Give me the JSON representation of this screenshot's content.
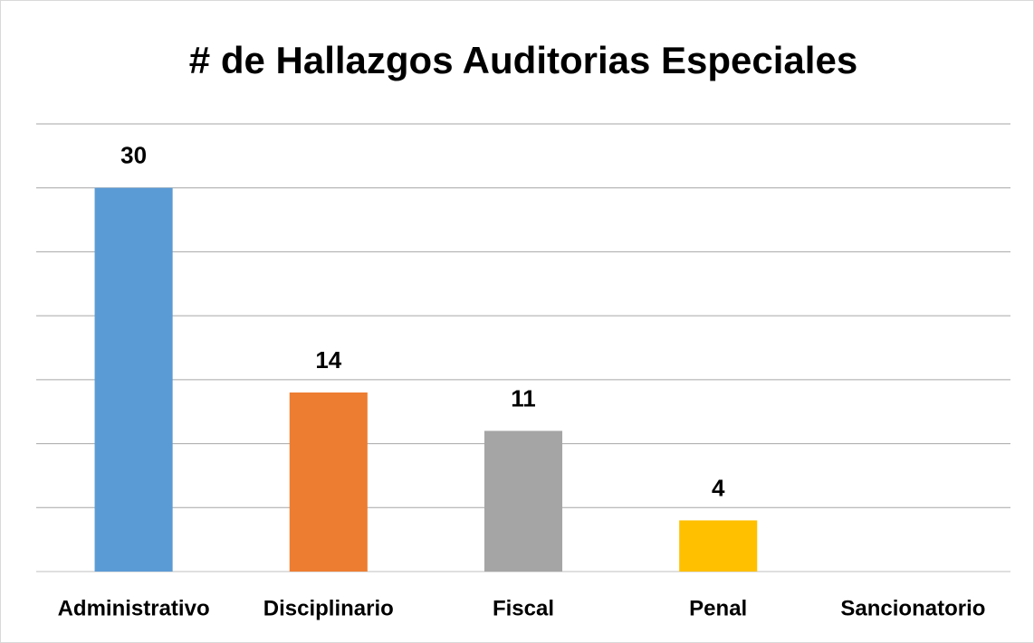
{
  "chart_data": {
    "type": "bar",
    "title": "# de Hallazgos Auditorias Especiales",
    "categories": [
      "Administrativo",
      "Disciplinario",
      "Fiscal",
      "Penal",
      "Sancionatorio"
    ],
    "values": [
      30,
      14,
      11,
      4,
      null
    ],
    "colors": [
      "#5b9bd5",
      "#ed7d31",
      "#a5a5a5",
      "#ffc000",
      "#4472c4"
    ],
    "ylim": [
      0,
      35
    ],
    "yticks": [
      0,
      5,
      10,
      15,
      20,
      25,
      30,
      35
    ],
    "grid": true
  }
}
